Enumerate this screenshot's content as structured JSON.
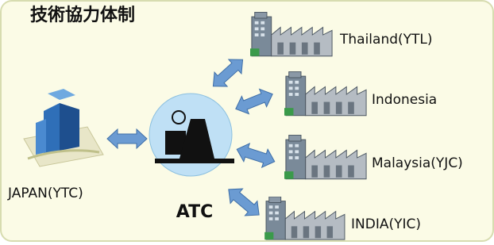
{
  "header": {
    "title": "技術協力体制"
  },
  "nodes": [
    {
      "label": "JAPAN(YTC)"
    },
    {
      "label": "ATC"
    },
    {
      "label": "Thailand(YTL)"
    },
    {
      "label": "Indonesia"
    },
    {
      "label": "Malaysia(YJC)"
    },
    {
      "label": "INDIA(YIC)"
    }
  ]
}
